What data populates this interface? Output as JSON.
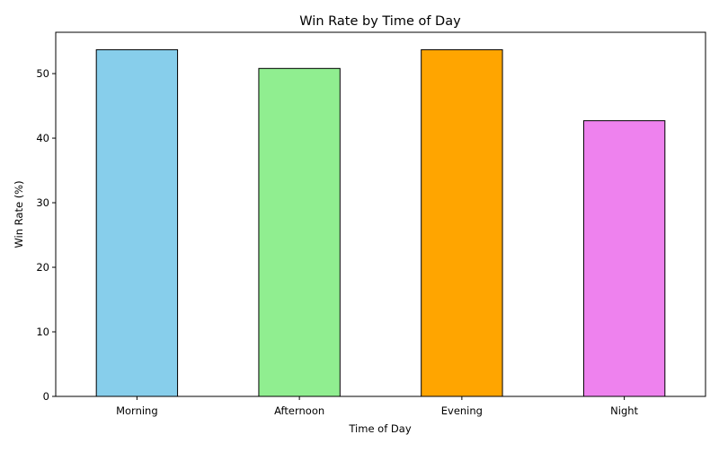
{
  "chart_data": {
    "type": "bar",
    "title": "Win Rate by Time of Day",
    "xlabel": "Time of Day",
    "ylabel": "Win Rate (%)",
    "categories": [
      "Morning",
      "Afternoon",
      "Evening",
      "Night"
    ],
    "values": [
      53.7,
      50.8,
      53.7,
      42.7
    ],
    "colors": [
      "#87ceeb",
      "#90ee90",
      "#ffa500",
      "#ee82ee"
    ],
    "edge_color": "#000000",
    "ylim": [
      0,
      56.4
    ],
    "yticks": [
      0,
      10,
      20,
      30,
      40,
      50
    ],
    "grid": false,
    "legend": "none"
  }
}
